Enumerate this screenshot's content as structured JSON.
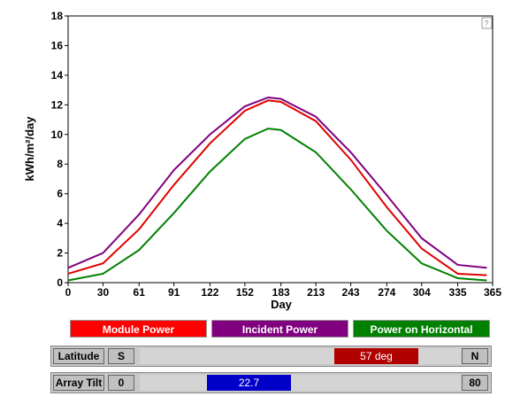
{
  "chart_data": {
    "type": "line",
    "y_label": "kWh/m²/day",
    "x_label": "Day",
    "help": "?",
    "x": [
      0,
      30,
      61,
      91,
      122,
      152,
      172,
      183,
      213,
      243,
      274,
      304,
      335,
      360
    ],
    "series": [
      {
        "name": "Module Power",
        "color": "#e00000",
        "values": [
          0.6,
          1.3,
          3.6,
          6.6,
          9.4,
          11.6,
          12.3,
          12.2,
          10.9,
          8.3,
          5.1,
          2.3,
          0.6,
          0.5
        ]
      },
      {
        "name": "Incident Power",
        "color": "#800080",
        "values": [
          1.0,
          2.0,
          4.6,
          7.6,
          10.0,
          11.9,
          12.5,
          12.4,
          11.2,
          8.8,
          5.9,
          3.0,
          1.2,
          1.0
        ]
      },
      {
        "name": "Power on Horizontal",
        "color": "#008000",
        "values": [
          0.15,
          0.6,
          2.2,
          4.7,
          7.5,
          9.7,
          10.4,
          10.3,
          8.8,
          6.3,
          3.5,
          1.3,
          0.3,
          0.15
        ]
      }
    ],
    "xlim": [
      0,
      365
    ],
    "xticks": [
      0,
      30,
      61,
      91,
      122,
      152,
      183,
      213,
      243,
      274,
      304,
      335,
      365
    ],
    "ylim": [
      0,
      18
    ],
    "yticks": [
      0,
      2,
      4,
      6,
      8,
      10,
      12,
      14,
      16,
      18
    ]
  },
  "controls": {
    "latitude": {
      "label": "Latitude",
      "min": "S",
      "max": "N",
      "value": "57 deg"
    },
    "tilt": {
      "label": "Array Tilt",
      "min": "0",
      "max": "80",
      "value": 22.7
    }
  }
}
